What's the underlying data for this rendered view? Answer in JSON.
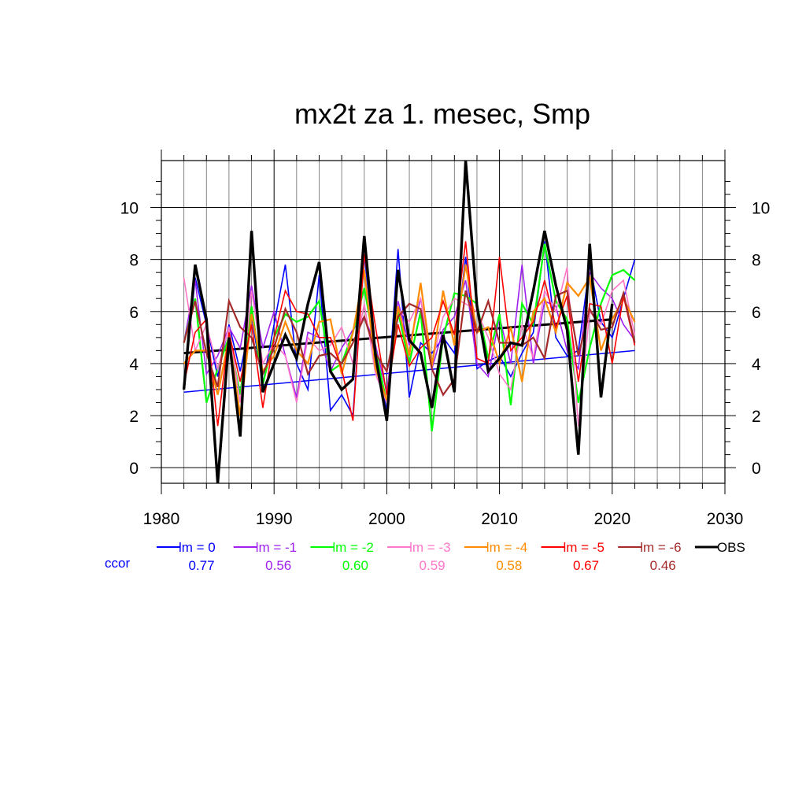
{
  "chart_data": {
    "type": "line",
    "title": "mx2t za 1. mesec, Smp",
    "xlabel": "",
    "ylabel": "",
    "xlim": [
      1980,
      2030
    ],
    "ylim": [
      -0.6,
      11.8
    ],
    "x_ticks": [
      1980,
      1990,
      2000,
      2010,
      2020,
      2030
    ],
    "y_ticks": [
      0,
      2,
      4,
      6,
      8,
      10
    ],
    "grid": true,
    "legend_position": "bottom",
    "corr_label": "ccor",
    "series": [
      {
        "name": "lm = 0",
        "color": "#0000ff",
        "width": 1.6,
        "corr": "0.77",
        "x": [
          1982,
          1983,
          1984,
          1985,
          1986,
          1987,
          1988,
          1989,
          1990,
          1991,
          1992,
          1993,
          1994,
          1995,
          1996,
          1997,
          1998,
          1999,
          2000,
          2001,
          2002,
          2003,
          2004,
          2005,
          2006,
          2007,
          2008,
          2009,
          2010,
          2011,
          2012,
          2013,
          2014,
          2015,
          2016,
          2017,
          2018,
          2019,
          2020,
          2021,
          2022
        ],
        "values": [
          3.0,
          7.3,
          5.5,
          3.5,
          5.5,
          3.7,
          5.8,
          3.2,
          5.5,
          7.8,
          4.0,
          3.0,
          7.4,
          2.2,
          2.8,
          2.0,
          8.2,
          4.2,
          2.2,
          8.4,
          2.7,
          4.8,
          4.4,
          5.0,
          4.4,
          8.1,
          3.8,
          4.1,
          4.3,
          3.5,
          4.4,
          5.2,
          8.7,
          5.0,
          4.3,
          4.5,
          7.8,
          5.6,
          5.0,
          6.5,
          8.0
        ],
        "trend": [
          [
            1982,
            2.9
          ],
          [
            2022,
            4.5
          ]
        ]
      },
      {
        "name": "lm = -1",
        "color": "#a020f0",
        "width": 1.6,
        "corr": "0.56",
        "x": [
          1982,
          1983,
          1984,
          1985,
          1986,
          1987,
          1988,
          1989,
          1990,
          1991,
          1992,
          1993,
          1994,
          1995,
          1996,
          1997,
          1998,
          1999,
          2000,
          2001,
          2002,
          2003,
          2004,
          2005,
          2006,
          2007,
          2008,
          2009,
          2010,
          2011,
          2012,
          2013,
          2014,
          2015,
          2016,
          2017,
          2018,
          2019,
          2020,
          2021,
          2022
        ],
        "values": [
          4.8,
          7.2,
          3.6,
          4.3,
          5.4,
          4.6,
          7.0,
          4.6,
          6.0,
          4.3,
          2.7,
          5.2,
          5.0,
          3.7,
          4.6,
          5.3,
          5.8,
          4.7,
          2.9,
          6.4,
          4.7,
          6.5,
          3.8,
          5.3,
          5.8,
          7.2,
          4.0,
          3.5,
          5.8,
          4.0,
          7.8,
          4.0,
          6.4,
          6.2,
          4.5,
          3.8,
          7.5,
          6.9,
          6.5,
          5.5,
          4.9
        ]
      },
      {
        "name": "lm = -2",
        "color": "#00ff00",
        "width": 2.2,
        "corr": "0.60",
        "x": [
          1982,
          1983,
          1984,
          1985,
          1986,
          1987,
          1988,
          1989,
          1990,
          1991,
          1992,
          1993,
          1994,
          1995,
          1996,
          1997,
          1998,
          1999,
          2000,
          2001,
          2002,
          2003,
          2004,
          2005,
          2006,
          2007,
          2008,
          2009,
          2010,
          2011,
          2012,
          2013,
          2014,
          2015,
          2016,
          2017,
          2018,
          2019,
          2020,
          2021,
          2022
        ],
        "values": [
          4.8,
          6.5,
          2.5,
          3.8,
          5.0,
          2.8,
          6.2,
          3.2,
          5.0,
          5.9,
          5.6,
          5.8,
          6.4,
          3.7,
          4.0,
          5.2,
          6.9,
          4.5,
          2.5,
          6.0,
          4.0,
          6.0,
          1.4,
          5.0,
          6.7,
          6.6,
          6.3,
          4.2,
          5.9,
          2.4,
          6.3,
          5.5,
          8.6,
          6.4,
          5.7,
          2.5,
          4.6,
          6.3,
          7.4,
          7.6,
          7.2
        ]
      },
      {
        "name": "lm = -3",
        "color": "#ff77c8",
        "width": 1.6,
        "corr": "0.59",
        "x": [
          1982,
          1983,
          1984,
          1985,
          1986,
          1987,
          1988,
          1989,
          1990,
          1991,
          1992,
          1993,
          1994,
          1995,
          1996,
          1997,
          1998,
          1999,
          2000,
          2001,
          2002,
          2003,
          2004,
          2005,
          2006,
          2007,
          2008,
          2009,
          2010,
          2011,
          2012,
          2013,
          2014,
          2015,
          2016,
          2017,
          2018,
          2019,
          2020,
          2021,
          2022
        ],
        "values": [
          7.3,
          4.5,
          5.5,
          3.8,
          5.4,
          2.5,
          6.8,
          4.0,
          4.8,
          4.3,
          2.5,
          5.0,
          4.5,
          4.7,
          5.4,
          4.0,
          6.3,
          3.6,
          2.5,
          6.1,
          5.6,
          6.5,
          4.0,
          5.8,
          6.5,
          6.3,
          6.0,
          5.0,
          3.6,
          3.0,
          5.5,
          4.2,
          6.8,
          6.0,
          7.7,
          1.6,
          6.0,
          5.5,
          6.8,
          7.2,
          5.1
        ]
      },
      {
        "name": "lm = -4",
        "color": "#ff8c00",
        "width": 2.2,
        "corr": "0.58",
        "x": [
          1982,
          1983,
          1984,
          1985,
          1986,
          1987,
          1988,
          1989,
          1990,
          1991,
          1992,
          1993,
          1994,
          1995,
          1996,
          1997,
          1998,
          1999,
          2000,
          2001,
          2002,
          2003,
          2004,
          2005,
          2006,
          2007,
          2008,
          2009,
          2010,
          2011,
          2012,
          2013,
          2014,
          2015,
          2016,
          2017,
          2018,
          2019,
          2020,
          2021,
          2022
        ],
        "values": [
          4.0,
          4.5,
          4.5,
          2.8,
          5.0,
          2.0,
          5.9,
          3.7,
          4.3,
          5.6,
          4.5,
          4.0,
          5.6,
          5.7,
          3.6,
          5.2,
          7.6,
          3.8,
          2.6,
          6.2,
          4.3,
          7.1,
          3.9,
          6.8,
          4.7,
          7.8,
          5.2,
          5.4,
          4.0,
          5.4,
          3.3,
          6.0,
          6.5,
          5.2,
          7.1,
          6.6,
          7.3,
          4.5,
          5.7,
          6.5,
          5.6
        ]
      },
      {
        "name": "lm = -5",
        "color": "#ff0000",
        "width": 1.6,
        "corr": "0.67",
        "x": [
          1982,
          1983,
          1984,
          1985,
          1986,
          1987,
          1988,
          1989,
          1990,
          1991,
          1992,
          1993,
          1994,
          1995,
          1996,
          1997,
          1998,
          1999,
          2000,
          2001,
          2002,
          2003,
          2004,
          2005,
          2006,
          2007,
          2008,
          2009,
          2010,
          2011,
          2012,
          2013,
          2014,
          2015,
          2016,
          2017,
          2018,
          2019,
          2020,
          2021,
          2022
        ],
        "values": [
          3.2,
          5.2,
          5.7,
          1.6,
          5.2,
          3.3,
          5.5,
          2.3,
          5.0,
          6.8,
          6.0,
          5.9,
          5.0,
          5.0,
          3.8,
          1.8,
          8.2,
          5.4,
          2.8,
          5.5,
          3.9,
          4.6,
          5.0,
          6.4,
          5.1,
          8.7,
          4.2,
          4.0,
          8.1,
          4.5,
          5.0,
          5.6,
          7.2,
          5.4,
          6.6,
          3.3,
          6.3,
          6.2,
          4.0,
          6.6,
          4.7
        ]
      },
      {
        "name": "lm = -6",
        "color": "#a52a2a",
        "width": 2.2,
        "corr": "0.46",
        "x": [
          1982,
          1983,
          1984,
          1985,
          1986,
          1987,
          1988,
          1989,
          1990,
          1991,
          1992,
          1993,
          1994,
          1995,
          1996,
          1997,
          1998,
          1999,
          2000,
          2001,
          2002,
          2003,
          2004,
          2005,
          2006,
          2007,
          2008,
          2009,
          2010,
          2011,
          2012,
          2013,
          2014,
          2015,
          2016,
          2017,
          2018,
          2019,
          2020,
          2021,
          2022
        ],
        "values": [
          4.8,
          6.4,
          4.4,
          3.1,
          6.4,
          5.4,
          5.0,
          3.6,
          4.6,
          6.1,
          5.2,
          3.6,
          4.3,
          4.4,
          4.0,
          4.8,
          5.8,
          4.4,
          3.7,
          5.8,
          6.3,
          6.1,
          3.8,
          2.8,
          3.4,
          6.8,
          5.2,
          6.4,
          4.8,
          4.8,
          4.7,
          5.0,
          4.2,
          6.6,
          6.8,
          4.3,
          6.1,
          5.3,
          5.4,
          6.7,
          4.8
        ]
      },
      {
        "name": "OBS",
        "color": "#000000",
        "width": 3.4,
        "x": [
          1982,
          1983,
          1984,
          1985,
          1986,
          1987,
          1988,
          1989,
          1990,
          1991,
          1992,
          1993,
          1994,
          1995,
          1996,
          1997,
          1998,
          1999,
          2000,
          2001,
          2002,
          2003,
          2004,
          2005,
          2006,
          2007,
          2008,
          2009,
          2010,
          2011,
          2012,
          2013,
          2014,
          2015,
          2016,
          2017,
          2018,
          2019,
          2020
        ],
        "values": [
          3.0,
          7.8,
          5.7,
          -0.6,
          5.0,
          1.2,
          9.1,
          2.9,
          4.0,
          5.1,
          4.2,
          6.3,
          7.9,
          3.7,
          3.0,
          3.4,
          8.9,
          4.3,
          1.8,
          7.6,
          4.9,
          4.4,
          2.3,
          5.1,
          2.9,
          11.8,
          6.2,
          3.7,
          4.2,
          4.8,
          4.7,
          6.8,
          9.1,
          7.0,
          5.3,
          0.5,
          8.6,
          2.7,
          6.3
        ],
        "trend": [
          [
            1982,
            4.4
          ],
          [
            2020,
            5.7
          ]
        ]
      }
    ]
  }
}
